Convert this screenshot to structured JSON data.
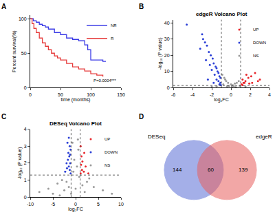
{
  "chart_data": [
    {
      "panel": "A",
      "type": "line",
      "xlabel": "time (months)",
      "ylabel": "Percent survival(%)",
      "xlim": [
        0,
        150
      ],
      "xticks": [
        0,
        50,
        100,
        150
      ],
      "ylim": [
        0,
        105
      ],
      "yticks": [
        0,
        50,
        100
      ],
      "grid": false,
      "legend": "upper right",
      "annotations": [
        {
          "text": "P=0.0004***"
        }
      ],
      "series": [
        {
          "name": "NR",
          "color": "#3b3be6",
          "line_style": "step",
          "x": [
            0,
            5,
            10,
            15,
            20,
            25,
            30,
            40,
            50,
            60,
            70,
            80,
            90,
            95,
            100,
            110,
            120,
            125
          ],
          "values": [
            100,
            97,
            95,
            92,
            90,
            88,
            85,
            80,
            77,
            72,
            70,
            68,
            62,
            55,
            40,
            40,
            38,
            38
          ]
        },
        {
          "name": "R",
          "color": "#e63b3b",
          "line_style": "step",
          "x": [
            0,
            3,
            6,
            10,
            15,
            20,
            25,
            30,
            35,
            40,
            45,
            50,
            60,
            70,
            80,
            90,
            100,
            110,
            120
          ],
          "values": [
            100,
            93,
            86,
            80,
            72,
            65,
            60,
            55,
            50,
            46,
            43,
            40,
            35,
            30,
            27,
            24,
            20,
            18,
            16
          ]
        }
      ]
    },
    {
      "panel": "B",
      "type": "scatter",
      "title": "edgeR Volcano Plot",
      "xlabel": "log₂FC",
      "ylabel": "-log₁₀ (P value)",
      "xlim": [
        -6,
        4
      ],
      "xticks": [
        -6,
        -4,
        -2,
        0,
        2,
        4
      ],
      "ylim": [
        0,
        42
      ],
      "yticks": [
        0,
        10,
        20,
        30,
        40
      ],
      "grid": false,
      "legend": "upper right",
      "thresholds": {
        "x": [
          -1,
          1
        ],
        "y": 1.3
      },
      "series": [
        {
          "name": "UP",
          "color": "#e8262b",
          "marker": "circle",
          "x": [
            1.1,
            1.3,
            1.5,
            1.2,
            1.8,
            2.1,
            1.6,
            2.5,
            1.4,
            1.9,
            2.8,
            1.2,
            3.0,
            2.2
          ],
          "values": [
            2,
            3,
            4,
            5,
            6,
            7,
            8,
            9,
            3,
            2.5,
            4,
            1.6,
            5,
            3
          ]
        },
        {
          "name": "DOWN",
          "color": "#2b3fd6",
          "marker": "circle",
          "x": [
            -4.6,
            -3.0,
            -2.9,
            -2.7,
            -2.5,
            -3.2,
            -2.3,
            -2.1,
            -1.9,
            -2.6,
            -1.8,
            -2.2,
            -1.6,
            -1.5,
            -2.0,
            -1.4,
            -1.3,
            -1.7,
            -1.2,
            -1.1,
            -1.5,
            -2.4,
            -1.3,
            -1.1,
            -1.8,
            -1.2,
            -1.05
          ],
          "values": [
            39,
            33,
            30,
            28,
            26,
            24,
            22,
            20,
            18,
            17,
            15,
            14,
            13,
            12,
            11,
            10,
            9,
            8,
            7,
            6,
            5,
            5,
            4,
            3,
            3,
            2,
            1.6
          ]
        },
        {
          "name": "NS",
          "color": "#9a9a9a",
          "marker": "circle",
          "x": [
            -0.9,
            -0.7,
            -0.5,
            -0.3,
            0,
            0.2,
            0.4,
            0.6,
            0.8,
            -0.8,
            -0.2,
            0.1,
            -0.4,
            0.5,
            0.9,
            -1.5,
            -2,
            1.5,
            -0.6,
            0.3
          ],
          "values": [
            8,
            6,
            4,
            3,
            2,
            1.5,
            2.5,
            3,
            4,
            2,
            1,
            0.5,
            0.8,
            0.3,
            1.2,
            0.8,
            0.5,
            0.6,
            5,
            0.9
          ]
        }
      ]
    },
    {
      "panel": "C",
      "type": "scatter",
      "title": "DESeq Volcano Plot",
      "xlabel": "log₂FC",
      "ylabel": "-log₁₀ (P value)",
      "xlim": [
        -10,
        10
      ],
      "xticks": [
        -10,
        -5,
        0,
        5,
        10
      ],
      "ylim": [
        0,
        4
      ],
      "yticks": [
        0,
        1,
        2,
        3,
        4
      ],
      "grid": false,
      "legend": "upper right",
      "thresholds": {
        "x": [
          -1,
          1
        ],
        "y": 1.3
      },
      "series": [
        {
          "name": "UP",
          "color": "#e8262b",
          "marker": "circle",
          "x": [
            1.1,
            1.4,
            1.8,
            1.2,
            2.2,
            1.5,
            2.8,
            1.3,
            1.9,
            1.1
          ],
          "values": [
            1.4,
            1.6,
            1.5,
            1.9,
            1.8,
            2.1,
            1.4,
            2.4,
            2.6,
            3.0
          ]
        },
        {
          "name": "DOWN",
          "color": "#2b3fd6",
          "marker": "circle",
          "x": [
            -1.1,
            -1.3,
            -1.5,
            -1.2,
            -1.7,
            -1.4,
            -2.0,
            -1.6,
            -1.1,
            -1.3,
            -1.8,
            -1.5,
            -2.3,
            -1.9,
            -1.2
          ],
          "values": [
            1.4,
            1.6,
            1.8,
            2.0,
            2.2,
            2.4,
            2.0,
            2.6,
            2.8,
            3.0,
            3.2,
            3.5,
            1.5,
            1.7,
            2.5
          ]
        },
        {
          "name": "NS",
          "color": "#9a9a9a",
          "marker": "circle",
          "x": [
            -8,
            -6,
            -5,
            -4,
            -3,
            -2.5,
            -2,
            -1.5,
            -1,
            -0.5,
            -0.3,
            0,
            0.3,
            0.6,
            0.8,
            1.5,
            2,
            3,
            4,
            6,
            8,
            -0.7,
            0.5,
            2.5,
            -3.5
          ],
          "values": [
            0.3,
            0.5,
            0.2,
            0.8,
            1.0,
            0.4,
            0.9,
            0.6,
            0.2,
            1.5,
            2.2,
            0.5,
            1.8,
            2.8,
            1.2,
            0.7,
            0.3,
            1.1,
            0.6,
            0.4,
            0.2,
            3.2,
            3.4,
            0.9,
            0.1
          ]
        }
      ]
    },
    {
      "panel": "D",
      "type": "venn",
      "sets": [
        {
          "name": "DESeq",
          "color": "#5b6fd6",
          "only": 144
        },
        {
          "name": "edgeR",
          "color": "#e8605f",
          "only": 139
        }
      ],
      "overlap": 60
    }
  ]
}
